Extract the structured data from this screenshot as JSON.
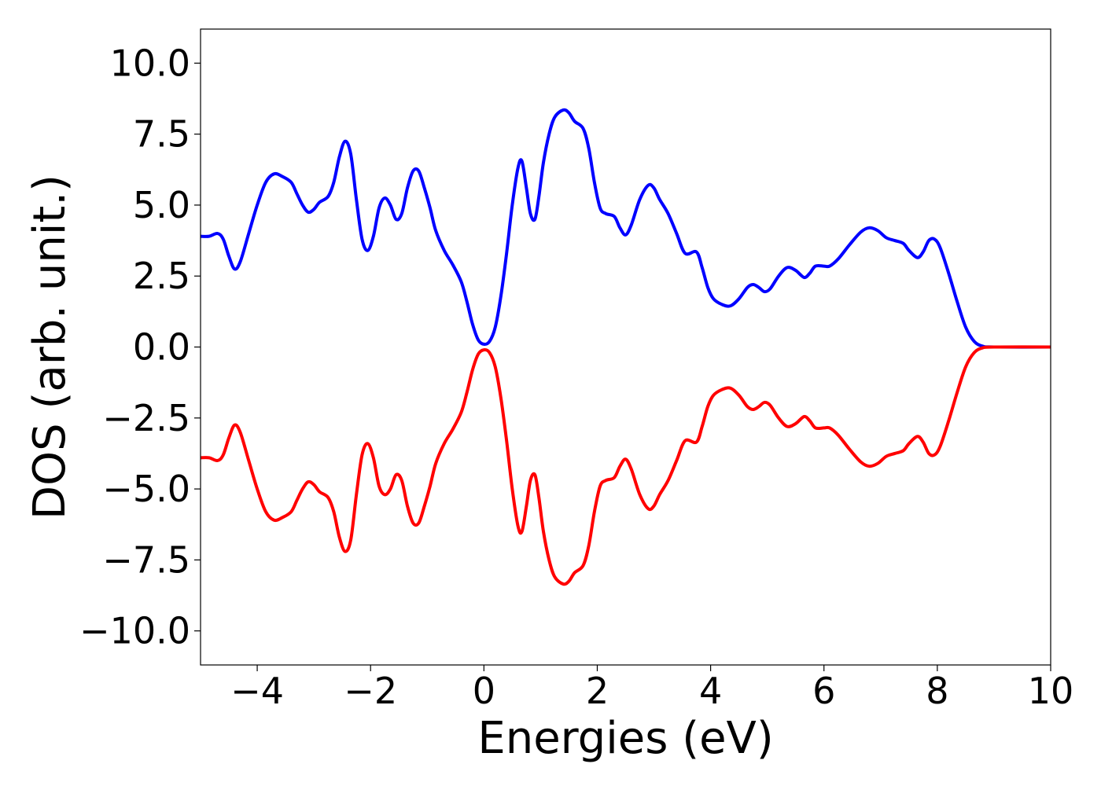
{
  "chart_data": {
    "type": "line",
    "title": "",
    "xlabel": "Energies (eV)",
    "ylabel": "DOS (arb. unit.)",
    "xlim": [
      -5,
      10
    ],
    "ylim": [
      -11.2,
      11.2
    ],
    "xticks": [
      -4,
      -2,
      0,
      2,
      4,
      6,
      8,
      10
    ],
    "xtick_labels": [
      "−4",
      "−2",
      "0",
      "2",
      "4",
      "6",
      "8",
      "10"
    ],
    "yticks": [
      10,
      7.5,
      5,
      2.5,
      0,
      -2.5,
      -5,
      -7.5,
      -10
    ],
    "ytick_labels": [
      "10.0",
      "7.5",
      "5.0",
      "2.5",
      "0.0",
      "−2.5",
      "−5.0",
      "−7.5",
      "−10.0"
    ],
    "grid": false,
    "legend": "none",
    "series": [
      {
        "color": "#0000ff",
        "points": [
          [
            -5.0,
            3.9
          ],
          [
            -4.85,
            3.9
          ],
          [
            -4.7,
            4.0
          ],
          [
            -4.6,
            3.8
          ],
          [
            -4.5,
            3.2
          ],
          [
            -4.4,
            2.75
          ],
          [
            -4.3,
            3.0
          ],
          [
            -4.15,
            4.0
          ],
          [
            -4.0,
            5.0
          ],
          [
            -3.85,
            5.8
          ],
          [
            -3.7,
            6.1
          ],
          [
            -3.55,
            6.0
          ],
          [
            -3.4,
            5.8
          ],
          [
            -3.3,
            5.4
          ],
          [
            -3.2,
            5.0
          ],
          [
            -3.1,
            4.75
          ],
          [
            -3.0,
            4.85
          ],
          [
            -2.9,
            5.1
          ],
          [
            -2.75,
            5.3
          ],
          [
            -2.65,
            5.8
          ],
          [
            -2.55,
            6.7
          ],
          [
            -2.45,
            7.25
          ],
          [
            -2.35,
            6.8
          ],
          [
            -2.25,
            5.2
          ],
          [
            -2.15,
            3.8
          ],
          [
            -2.05,
            3.4
          ],
          [
            -1.95,
            3.9
          ],
          [
            -1.85,
            4.9
          ],
          [
            -1.75,
            5.25
          ],
          [
            -1.65,
            5.0
          ],
          [
            -1.55,
            4.5
          ],
          [
            -1.45,
            4.7
          ],
          [
            -1.35,
            5.6
          ],
          [
            -1.25,
            6.2
          ],
          [
            -1.15,
            6.2
          ],
          [
            -1.05,
            5.6
          ],
          [
            -0.95,
            4.9
          ],
          [
            -0.85,
            4.1
          ],
          [
            -0.7,
            3.4
          ],
          [
            -0.55,
            2.9
          ],
          [
            -0.4,
            2.3
          ],
          [
            -0.3,
            1.6
          ],
          [
            -0.2,
            0.8
          ],
          [
            -0.1,
            0.25
          ],
          [
            0.0,
            0.1
          ],
          [
            0.1,
            0.2
          ],
          [
            0.2,
            0.7
          ],
          [
            0.3,
            1.8
          ],
          [
            0.4,
            3.3
          ],
          [
            0.5,
            5.0
          ],
          [
            0.6,
            6.3
          ],
          [
            0.67,
            6.55
          ],
          [
            0.75,
            5.6
          ],
          [
            0.82,
            4.7
          ],
          [
            0.9,
            4.5
          ],
          [
            0.97,
            5.3
          ],
          [
            1.05,
            6.5
          ],
          [
            1.15,
            7.5
          ],
          [
            1.25,
            8.1
          ],
          [
            1.4,
            8.35
          ],
          [
            1.5,
            8.25
          ],
          [
            1.6,
            7.95
          ],
          [
            1.75,
            7.7
          ],
          [
            1.85,
            7.0
          ],
          [
            1.95,
            5.8
          ],
          [
            2.05,
            4.9
          ],
          [
            2.15,
            4.7
          ],
          [
            2.3,
            4.6
          ],
          [
            2.4,
            4.2
          ],
          [
            2.5,
            3.95
          ],
          [
            2.6,
            4.3
          ],
          [
            2.75,
            5.2
          ],
          [
            2.9,
            5.7
          ],
          [
            3.0,
            5.6
          ],
          [
            3.1,
            5.2
          ],
          [
            3.25,
            4.7
          ],
          [
            3.4,
            4.0
          ],
          [
            3.55,
            3.3
          ],
          [
            3.75,
            3.35
          ],
          [
            3.85,
            2.8
          ],
          [
            3.95,
            2.1
          ],
          [
            4.05,
            1.7
          ],
          [
            4.2,
            1.5
          ],
          [
            4.35,
            1.45
          ],
          [
            4.5,
            1.7
          ],
          [
            4.65,
            2.1
          ],
          [
            4.75,
            2.2
          ],
          [
            4.85,
            2.1
          ],
          [
            4.95,
            1.95
          ],
          [
            5.05,
            2.05
          ],
          [
            5.2,
            2.5
          ],
          [
            5.35,
            2.8
          ],
          [
            5.5,
            2.7
          ],
          [
            5.65,
            2.45
          ],
          [
            5.75,
            2.6
          ],
          [
            5.85,
            2.85
          ],
          [
            6.0,
            2.85
          ],
          [
            6.1,
            2.85
          ],
          [
            6.25,
            3.1
          ],
          [
            6.45,
            3.6
          ],
          [
            6.65,
            4.05
          ],
          [
            6.8,
            4.2
          ],
          [
            6.95,
            4.1
          ],
          [
            7.1,
            3.85
          ],
          [
            7.25,
            3.75
          ],
          [
            7.4,
            3.65
          ],
          [
            7.5,
            3.4
          ],
          [
            7.65,
            3.15
          ],
          [
            7.75,
            3.35
          ],
          [
            7.85,
            3.75
          ],
          [
            7.95,
            3.8
          ],
          [
            8.05,
            3.5
          ],
          [
            8.2,
            2.6
          ],
          [
            8.35,
            1.6
          ],
          [
            8.5,
            0.7
          ],
          [
            8.65,
            0.2
          ],
          [
            8.8,
            0.03
          ],
          [
            9.0,
            0.0
          ],
          [
            10.0,
            0.0
          ]
        ]
      },
      {
        "color": "#ff0000",
        "points": [
          [
            -5.0,
            -3.9
          ],
          [
            -4.85,
            -3.9
          ],
          [
            -4.7,
            -4.0
          ],
          [
            -4.6,
            -3.8
          ],
          [
            -4.5,
            -3.2
          ],
          [
            -4.4,
            -2.75
          ],
          [
            -4.3,
            -3.0
          ],
          [
            -4.15,
            -4.0
          ],
          [
            -4.0,
            -5.0
          ],
          [
            -3.85,
            -5.8
          ],
          [
            -3.7,
            -6.1
          ],
          [
            -3.55,
            -6.0
          ],
          [
            -3.4,
            -5.8
          ],
          [
            -3.3,
            -5.4
          ],
          [
            -3.2,
            -5.0
          ],
          [
            -3.1,
            -4.75
          ],
          [
            -3.0,
            -4.85
          ],
          [
            -2.9,
            -5.1
          ],
          [
            -2.75,
            -5.3
          ],
          [
            -2.65,
            -5.8
          ],
          [
            -2.55,
            -6.7
          ],
          [
            -2.45,
            -7.2
          ],
          [
            -2.35,
            -6.8
          ],
          [
            -2.25,
            -5.2
          ],
          [
            -2.15,
            -3.8
          ],
          [
            -2.05,
            -3.4
          ],
          [
            -1.95,
            -3.9
          ],
          [
            -1.85,
            -4.9
          ],
          [
            -1.75,
            -5.2
          ],
          [
            -1.65,
            -5.0
          ],
          [
            -1.55,
            -4.5
          ],
          [
            -1.45,
            -4.7
          ],
          [
            -1.35,
            -5.6
          ],
          [
            -1.25,
            -6.2
          ],
          [
            -1.15,
            -6.2
          ],
          [
            -1.05,
            -5.6
          ],
          [
            -0.95,
            -4.9
          ],
          [
            -0.85,
            -4.1
          ],
          [
            -0.7,
            -3.4
          ],
          [
            -0.55,
            -2.9
          ],
          [
            -0.4,
            -2.3
          ],
          [
            -0.3,
            -1.6
          ],
          [
            -0.2,
            -0.8
          ],
          [
            -0.1,
            -0.25
          ],
          [
            0.0,
            -0.1
          ],
          [
            0.1,
            -0.2
          ],
          [
            0.2,
            -0.7
          ],
          [
            0.3,
            -1.8
          ],
          [
            0.4,
            -3.3
          ],
          [
            0.5,
            -5.0
          ],
          [
            0.6,
            -6.3
          ],
          [
            0.67,
            -6.5
          ],
          [
            0.75,
            -5.6
          ],
          [
            0.82,
            -4.7
          ],
          [
            0.9,
            -4.5
          ],
          [
            0.97,
            -5.3
          ],
          [
            1.05,
            -6.5
          ],
          [
            1.15,
            -7.5
          ],
          [
            1.25,
            -8.1
          ],
          [
            1.4,
            -8.35
          ],
          [
            1.5,
            -8.25
          ],
          [
            1.6,
            -7.95
          ],
          [
            1.75,
            -7.7
          ],
          [
            1.85,
            -7.0
          ],
          [
            1.95,
            -5.8
          ],
          [
            2.05,
            -4.9
          ],
          [
            2.15,
            -4.7
          ],
          [
            2.3,
            -4.6
          ],
          [
            2.4,
            -4.2
          ],
          [
            2.5,
            -3.95
          ],
          [
            2.6,
            -4.3
          ],
          [
            2.75,
            -5.2
          ],
          [
            2.9,
            -5.7
          ],
          [
            3.0,
            -5.6
          ],
          [
            3.1,
            -5.2
          ],
          [
            3.25,
            -4.7
          ],
          [
            3.4,
            -4.0
          ],
          [
            3.55,
            -3.3
          ],
          [
            3.75,
            -3.35
          ],
          [
            3.85,
            -2.8
          ],
          [
            3.95,
            -2.1
          ],
          [
            4.05,
            -1.7
          ],
          [
            4.2,
            -1.5
          ],
          [
            4.35,
            -1.45
          ],
          [
            4.5,
            -1.7
          ],
          [
            4.65,
            -2.1
          ],
          [
            4.75,
            -2.2
          ],
          [
            4.85,
            -2.1
          ],
          [
            4.95,
            -1.95
          ],
          [
            5.05,
            -2.05
          ],
          [
            5.2,
            -2.5
          ],
          [
            5.35,
            -2.8
          ],
          [
            5.5,
            -2.7
          ],
          [
            5.65,
            -2.45
          ],
          [
            5.75,
            -2.6
          ],
          [
            5.85,
            -2.85
          ],
          [
            6.0,
            -2.85
          ],
          [
            6.1,
            -2.85
          ],
          [
            6.25,
            -3.1
          ],
          [
            6.45,
            -3.6
          ],
          [
            6.65,
            -4.05
          ],
          [
            6.8,
            -4.2
          ],
          [
            6.95,
            -4.1
          ],
          [
            7.1,
            -3.85
          ],
          [
            7.25,
            -3.75
          ],
          [
            7.4,
            -3.65
          ],
          [
            7.5,
            -3.4
          ],
          [
            7.65,
            -3.15
          ],
          [
            7.75,
            -3.35
          ],
          [
            7.85,
            -3.75
          ],
          [
            7.95,
            -3.8
          ],
          [
            8.05,
            -3.5
          ],
          [
            8.2,
            -2.6
          ],
          [
            8.35,
            -1.6
          ],
          [
            8.5,
            -0.7
          ],
          [
            8.65,
            -0.2
          ],
          [
            8.8,
            -0.03
          ],
          [
            9.0,
            0.0
          ],
          [
            10.0,
            0.0
          ]
        ]
      }
    ]
  }
}
